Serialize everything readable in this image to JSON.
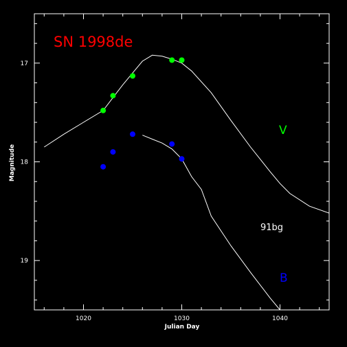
{
  "chart_data": {
    "type": "scatter",
    "title": "SN 1998de",
    "xlabel": "Julian Day",
    "ylabel": "Magnitude",
    "xlim": [
      1015,
      1045
    ],
    "ylim": [
      19.5,
      16.5
    ],
    "y_inverted": true,
    "xticks": [
      1020,
      1030,
      1040
    ],
    "xtick_labels": [
      "1020",
      "1030",
      "1040"
    ],
    "yticks": [
      17,
      18,
      19
    ],
    "ytick_labels": [
      "17",
      "18",
      "19"
    ],
    "grid": false,
    "template_label": "91bg",
    "colors": {
      "background": "#000000",
      "axes": "#ffffff",
      "title": "#ff0000",
      "V": "#00ff00",
      "B": "#0000ff",
      "template": "#ffffff"
    },
    "series": [
      {
        "name": "V",
        "kind": "points",
        "color": "#00ff00",
        "x": [
          1022.0,
          1023.0,
          1025.0,
          1029.0,
          1030.0
        ],
        "y": [
          17.48,
          17.33,
          17.13,
          16.97,
          16.97
        ]
      },
      {
        "name": "B",
        "kind": "points",
        "color": "#0000ff",
        "x": [
          1022.0,
          1023.0,
          1025.0,
          1029.0,
          1030.0
        ],
        "y": [
          18.05,
          17.9,
          17.72,
          17.82,
          17.97
        ]
      },
      {
        "name": "V",
        "kind": "template",
        "color": "#ffffff",
        "x": [
          1016.0,
          1018.0,
          1020.0,
          1022.0,
          1023.0,
          1024.0,
          1025.0,
          1026.0,
          1027.0,
          1028.0,
          1029.0,
          1030.0,
          1031.0,
          1033.0,
          1035.0,
          1037.0,
          1039.0,
          1040.0,
          1041.0,
          1043.0,
          1045.0
        ],
        "y": [
          17.85,
          17.72,
          17.6,
          17.48,
          17.35,
          17.22,
          17.1,
          16.98,
          16.92,
          16.93,
          16.96,
          17.0,
          17.08,
          17.3,
          17.58,
          17.85,
          18.1,
          18.22,
          18.32,
          18.45,
          18.52
        ]
      },
      {
        "name": "B",
        "kind": "template",
        "color": "#ffffff",
        "x": [
          1026.0,
          1027.0,
          1028.0,
          1029.0,
          1030.0,
          1031.0,
          1032.0,
          1033.0,
          1035.0,
          1037.0,
          1039.0,
          1040.0
        ],
        "y": [
          17.73,
          17.77,
          17.81,
          17.87,
          17.97,
          18.15,
          18.28,
          18.55,
          18.85,
          19.12,
          19.38,
          19.5
        ]
      }
    ]
  }
}
